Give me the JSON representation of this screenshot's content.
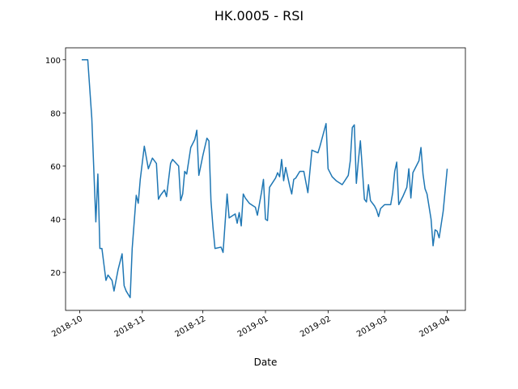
{
  "chart_data": {
    "type": "line",
    "title": "HK.0005 - RSI",
    "xlabel": "Date",
    "x": [
      1,
      4,
      6,
      8,
      9,
      10,
      11,
      13,
      14,
      16,
      17,
      19,
      21,
      22,
      23,
      25,
      26,
      28,
      29,
      30,
      32,
      34,
      36,
      38,
      39,
      40,
      42,
      43,
      45,
      46,
      49,
      50,
      51,
      52,
      53,
      55,
      57,
      58,
      59,
      61,
      63,
      64,
      65,
      66,
      67,
      70,
      71,
      73,
      74,
      77,
      78,
      79,
      80,
      81,
      82,
      84,
      87,
      88,
      90,
      91,
      92,
      93,
      94,
      97,
      98,
      99,
      100,
      101,
      102,
      104,
      105,
      106,
      107,
      109,
      111,
      113,
      115,
      118,
      119,
      122,
      123,
      125,
      127,
      130,
      133,
      134,
      135,
      136,
      137,
      138,
      139,
      141,
      142,
      143,
      144,
      146,
      147,
      148,
      149,
      151,
      154,
      155,
      156,
      157,
      158,
      160,
      162,
      163,
      164,
      165,
      168,
      169,
      170,
      171,
      172,
      174,
      175,
      176,
      177,
      178,
      180,
      182
    ],
    "series": [
      {
        "name": "RSI",
        "color": "#1f77b4",
        "values": [
          100,
          100,
          78,
          39,
          57,
          29,
          29,
          17,
          19,
          17,
          13,
          21,
          27,
          15,
          13,
          10.5,
          29,
          49,
          46,
          55,
          67.5,
          59,
          63,
          61,
          47.5,
          49,
          51,
          48.5,
          61,
          62.5,
          60,
          47,
          49.5,
          58,
          57,
          67,
          70,
          73.5,
          56.5,
          64,
          70.5,
          69.5,
          47,
          37,
          29,
          29.5,
          27.5,
          49.5,
          40.5,
          42,
          38.5,
          42.5,
          37.5,
          49.5,
          48,
          46,
          44.5,
          41.5,
          50,
          55,
          40,
          39.5,
          52,
          55.5,
          57.5,
          56,
          62.5,
          54.5,
          59.5,
          52.5,
          49.5,
          55,
          55.5,
          58,
          58,
          50,
          66,
          65,
          67.5,
          76,
          59,
          56,
          54.5,
          53,
          56.5,
          62,
          74.5,
          75.5,
          53.5,
          62,
          69.5,
          47.5,
          46.5,
          53,
          47,
          45,
          43.5,
          41,
          44,
          45.5,
          45.5,
          50,
          58,
          61.5,
          45.5,
          48.5,
          52,
          59,
          48,
          57.5,
          62,
          67,
          57,
          51.5,
          49.5,
          40,
          30,
          36,
          35.5,
          33,
          43,
          59
        ]
      }
    ],
    "xlim": [
      -7,
      191
    ],
    "xticks": [
      {
        "value": 0,
        "label": "2018-10"
      },
      {
        "value": 31,
        "label": "2018-11"
      },
      {
        "value": 61,
        "label": "2018-12"
      },
      {
        "value": 92,
        "label": "2019-01"
      },
      {
        "value": 123,
        "label": "2019-02"
      },
      {
        "value": 151,
        "label": "2019-03"
      },
      {
        "value": 182,
        "label": "2019-04"
      }
    ],
    "ylim": [
      5.7,
      104.5
    ],
    "yticks": [
      20,
      40,
      60,
      80,
      100
    ]
  }
}
